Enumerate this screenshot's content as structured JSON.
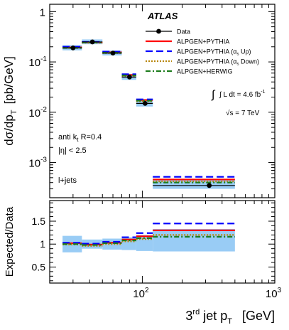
{
  "chart_data": {
    "type": "scatter",
    "xlabel": {
      "prefix": "3",
      "sup": "rd",
      "mid": " jet p",
      "sub": "T",
      "unit": "[GeV]"
    },
    "xscale": "log",
    "xlim": [
      20,
      1000
    ],
    "x_tick_labels": [
      {
        "value": 100,
        "base": "10",
        "exp": "2"
      },
      {
        "value": 1000,
        "base": "10",
        "exp": "3"
      }
    ],
    "top": {
      "ylabel": {
        "main": "dσ/dp",
        "sub": "T",
        "unit": "[pb/GeV]"
      },
      "yscale": "log",
      "ylim": [
        0.0002,
        1.4
      ],
      "y_tick_labels": [
        {
          "value": 1,
          "base": "1",
          "exp": ""
        },
        {
          "value": 0.1,
          "base": "10",
          "exp": "-1"
        },
        {
          "value": 0.01,
          "base": "10",
          "exp": "-2"
        },
        {
          "value": 0.001,
          "base": "10",
          "exp": "-3"
        }
      ],
      "experiment_label": "ATLAS",
      "luminosity_text": "∫ L dt = 4.6 fb",
      "luminosity_exp": "-1",
      "energy_text": "√s = 7 TeV",
      "annotations": [
        "anti k",
        "t",
        " R=0.4",
        "|η| < 2.5",
        "l+jets"
      ],
      "bins": [
        {
          "x_low": 25,
          "x_high": 35,
          "y": 0.19,
          "band_low": 0.17,
          "band_high": 0.215
        },
        {
          "x_low": 35,
          "x_high": 50,
          "y": 0.25,
          "band_low": 0.225,
          "band_high": 0.28
        },
        {
          "x_low": 50,
          "x_high": 70,
          "y": 0.15,
          "band_low": 0.135,
          "band_high": 0.168
        },
        {
          "x_low": 70,
          "x_high": 90,
          "y": 0.05,
          "band_low": 0.044,
          "band_high": 0.058
        },
        {
          "x_low": 90,
          "x_high": 120,
          "y": 0.015,
          "band_low": 0.013,
          "band_high": 0.018
        },
        {
          "x_low": 120,
          "x_high": 500,
          "y": 0.00035,
          "band_low": 0.0003,
          "band_high": 0.00047
        }
      ],
      "series": [
        {
          "name": "Data",
          "color": "#000000",
          "style": "marker",
          "x": [
            30,
            42,
            60,
            80,
            105,
            320
          ],
          "y": [
            0.19,
            0.25,
            0.15,
            0.05,
            0.015,
            0.00035
          ]
        },
        {
          "name": "ALPGEN+PYTHIA",
          "color": "#ff0000",
          "style": "solid",
          "values": [
            0.195,
            0.245,
            0.155,
            0.055,
            0.0175,
            0.00046
          ]
        },
        {
          "name": "ALPGEN+PYTHIA (α_s Up)",
          "legend_parts": [
            "ALPGEN+PYTHIA (α",
            "s",
            " Up)"
          ],
          "color": "#0000ff",
          "style": "longdash",
          "values": [
            0.2,
            0.25,
            0.16,
            0.057,
            0.018,
            0.00052
          ]
        },
        {
          "name": "ALPGEN+PYTHIA (α_s Down)",
          "legend_parts": [
            "ALPGEN+PYTHIA (α",
            "s",
            " Down)"
          ],
          "color": "#b8860b",
          "style": "dotted",
          "values": [
            0.19,
            0.24,
            0.15,
            0.052,
            0.0165,
            0.00042
          ]
        },
        {
          "name": "ALPGEN+HERWIG",
          "color": "#1e7d1e",
          "style": "dashdot",
          "values": [
            0.19,
            0.245,
            0.152,
            0.054,
            0.017,
            0.0004
          ]
        }
      ]
    },
    "bottom": {
      "ylabel": "Expected/Data",
      "ylim": [
        0.15,
        1.95
      ],
      "y_tick_labels": [
        "0.5",
        "1",
        "1.5"
      ],
      "y_tick_values": [
        0.5,
        1,
        1.5
      ],
      "band": [
        {
          "x_low": 25,
          "x_high": 35,
          "low": 0.82,
          "high": 1.18
        },
        {
          "x_low": 35,
          "x_high": 50,
          "low": 0.9,
          "high": 1.1
        },
        {
          "x_low": 50,
          "x_high": 70,
          "low": 0.88,
          "high": 1.12
        },
        {
          "x_low": 70,
          "x_high": 90,
          "low": 0.87,
          "high": 1.15
        },
        {
          "x_low": 90,
          "x_high": 120,
          "low": 0.85,
          "high": 1.2
        },
        {
          "x_low": 120,
          "x_high": 500,
          "low": 0.84,
          "high": 1.33
        }
      ],
      "series": [
        {
          "name": "ALPGEN+PYTHIA",
          "color": "#ff0000",
          "style": "solid",
          "values": [
            1.02,
            0.99,
            1.03,
            1.1,
            1.17,
            1.3
          ]
        },
        {
          "name": "ALPGEN+PYTHIA (α_s Up)",
          "color": "#0000ff",
          "style": "longdash",
          "values": [
            1.03,
            1.01,
            1.05,
            1.15,
            1.24,
            1.45
          ]
        },
        {
          "name": "ALPGEN+PYTHIA (α_s Down)",
          "color": "#b8860b",
          "style": "dotted",
          "values": [
            0.99,
            0.96,
            1.0,
            1.06,
            1.11,
            1.2
          ]
        },
        {
          "name": "ALPGEN+HERWIG",
          "color": "#1e7d1e",
          "style": "dashdot",
          "values": [
            1.0,
            0.98,
            1.02,
            1.08,
            1.13,
            1.16
          ]
        }
      ]
    },
    "colors": {
      "band": "#99ccf5",
      "axis": "#000000"
    }
  }
}
